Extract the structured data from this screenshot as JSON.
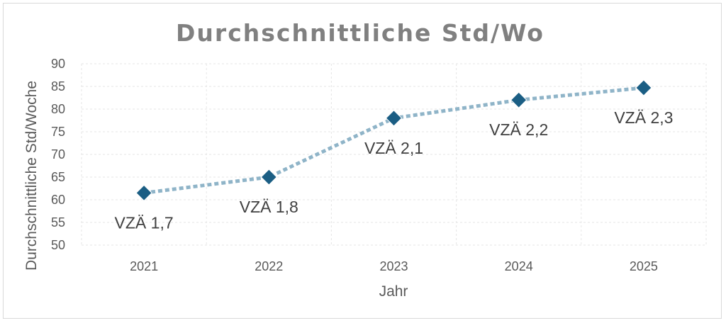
{
  "chart_data": {
    "type": "line",
    "title": "Durchschnittliche Std/Wo",
    "xlabel": "Jahr",
    "ylabel": "Durchschnittliche Std/Woche",
    "categories": [
      "2021",
      "2022",
      "2023",
      "2024",
      "2025"
    ],
    "series": [
      {
        "values": [
          61.5,
          65,
          78,
          82,
          84.7
        ],
        "labels": [
          "VZÄ 1,7",
          "VZÄ 1,8",
          "VZÄ 2,1",
          "VZÄ 2,2",
          "VZÄ 2,3"
        ]
      }
    ],
    "ylim": [
      50,
      90
    ],
    "yticks": [
      50,
      55,
      60,
      65,
      70,
      75,
      80,
      85,
      90
    ],
    "grid": true,
    "legend": "none",
    "colors": {
      "line": "#8fb4c8",
      "marker": "#1b5e84",
      "title": "#808080",
      "text": "#595959",
      "grid": "#e6e6e6"
    }
  }
}
